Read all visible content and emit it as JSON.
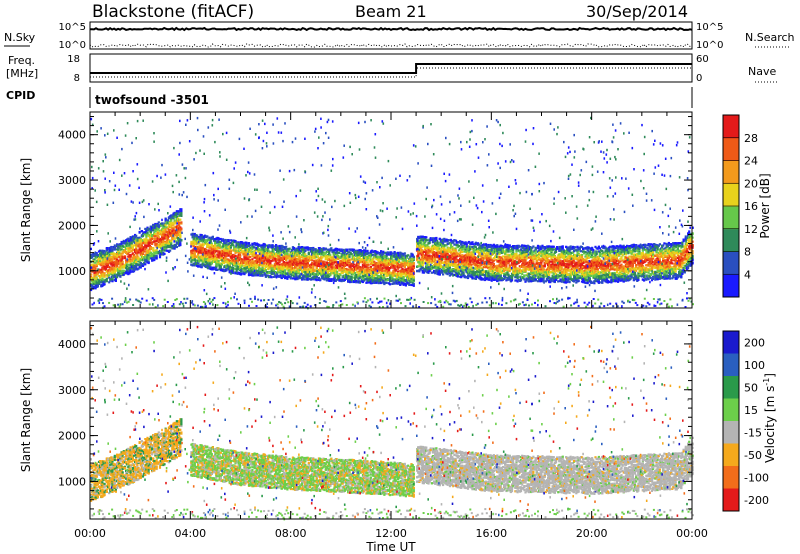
{
  "header": {
    "station": "Blackstone (fitACF)",
    "beam": "Beam 21",
    "date": "30/Sep/2014"
  },
  "noise_panel": {
    "left_label": "N.Sky",
    "right_label": "N.Search",
    "left_ticks": [
      "10^5",
      "10^0"
    ],
    "right_ticks": [
      "10^5",
      "10^0"
    ]
  },
  "freq_panel": {
    "left_label_1": "Freq.",
    "left_label_2": "[MHz]",
    "left_ticks": [
      "18",
      "8"
    ],
    "right_label": "Nave",
    "right_ticks": [
      "60",
      "0"
    ]
  },
  "cpid_panel": {
    "label": "CPID",
    "value": "twofsound  -3501"
  },
  "chart_data": [
    {
      "type": "heatmap",
      "title": "",
      "ylabel": "Slant Range [km]",
      "xlabel": "",
      "yticks": [
        "1000",
        "2000",
        "3000",
        "4000"
      ],
      "ylim": [
        180,
        4500
      ],
      "xlim": [
        0,
        24
      ],
      "colorbar": {
        "label": "Power [dB]",
        "ticks": [
          "4",
          "8",
          "12",
          "16",
          "20",
          "24",
          "28"
        ],
        "colors": [
          "#1a1aff",
          "#2a4fc0",
          "#2f8a5a",
          "#66c84a",
          "#e8d21c",
          "#f39a1c",
          "#ef5a17",
          "#e41a1a"
        ]
      },
      "scatter_bands": [
        {
          "name": "",
          "t": [
            0,
            1,
            2,
            3,
            3.6
          ],
          "r": [
            1000,
            1200,
            1500,
            1800,
            2000
          ],
          "thickness_km": 500
        },
        {
          "name": "",
          "t": [
            4,
            6,
            8,
            10,
            12.9
          ],
          "r": [
            1500,
            1300,
            1200,
            1150,
            1050
          ],
          "thickness_km": 450
        },
        {
          "name": "",
          "t": [
            13,
            16,
            20,
            23.5,
            24
          ],
          "r": [
            1400,
            1200,
            1150,
            1250,
            1600
          ],
          "thickness_km": 500
        }
      ]
    },
    {
      "type": "heatmap",
      "title": "",
      "ylabel": "Slant Range [km]",
      "xlabel": "Time UT",
      "yticks": [
        "1000",
        "2000",
        "3000",
        "4000"
      ],
      "xticks": [
        "00:00",
        "04:00",
        "08:00",
        "12:00",
        "16:00",
        "20:00",
        "00:00"
      ],
      "ylim": [
        180,
        4500
      ],
      "xlim": [
        0,
        24
      ],
      "colorbar": {
        "label": "Velocity [m s",
        "label_sup": "-1",
        "label_end": "]",
        "ticks": [
          "200",
          "100",
          "50",
          "15",
          "-15",
          "-50",
          "-100",
          "-200"
        ],
        "colors": [
          "#1a1acd",
          "#2a5fc0",
          "#2a9a4a",
          "#6ccf4a",
          "#b4b4b4",
          "#f5a91c",
          "#f26d1a",
          "#e41a1a"
        ]
      }
    }
  ]
}
